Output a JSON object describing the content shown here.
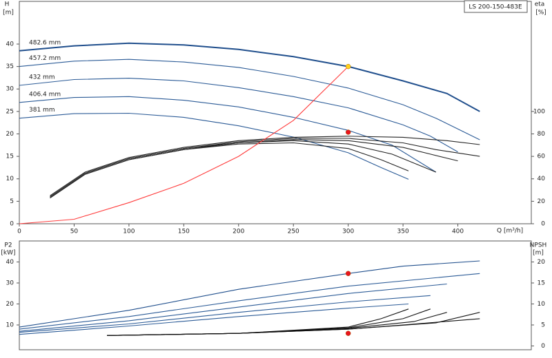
{
  "chart_data": [
    {
      "type": "line",
      "title": "LS 200-150-483E",
      "ylabel": "H",
      "yunit": "[m]",
      "y2label": "eta",
      "y2unit": "[%]",
      "xlabel": "Q [m³/h]",
      "xlim": [
        0,
        467
      ],
      "ylim": [
        0,
        49.5
      ],
      "y2lim": [
        0,
        198
      ],
      "xticks": [
        0,
        50,
        100,
        150,
        200,
        250,
        300,
        350,
        400
      ],
      "yticks": [
        0,
        5,
        10,
        15,
        20,
        25,
        30,
        35,
        40
      ],
      "y2ticks": [
        0,
        20,
        40,
        60,
        80,
        100
      ],
      "series": [
        {
          "name": "482.6 mm",
          "color": "#1f4e8c",
          "x": [
            0,
            50,
            100,
            150,
            200,
            250,
            300,
            350,
            390,
            420
          ],
          "values": [
            38.5,
            39.6,
            40.2,
            39.8,
            38.8,
            37.2,
            35,
            31.8,
            29,
            25
          ]
        },
        {
          "name": "457.2 mm",
          "color": "#2a5a96",
          "x": [
            0,
            50,
            100,
            150,
            200,
            250,
            300,
            350,
            380,
            420
          ],
          "values": [
            35,
            36.2,
            36.6,
            36,
            34.8,
            32.8,
            30.2,
            26.5,
            23.5,
            18.7
          ]
        },
        {
          "name": "432 mm",
          "color": "#2a5a96",
          "x": [
            0,
            50,
            100,
            150,
            200,
            250,
            300,
            350,
            375,
            400
          ],
          "values": [
            30.8,
            32.1,
            32.4,
            31.8,
            30.3,
            28.3,
            25.8,
            22,
            19.5,
            16
          ]
        },
        {
          "name": "406.4 mm",
          "color": "#2a5a96",
          "x": [
            0,
            50,
            100,
            150,
            200,
            250,
            300,
            340,
            380
          ],
          "values": [
            27,
            28.1,
            28.3,
            27.5,
            26,
            23.7,
            20.8,
            17.5,
            11.5
          ]
        },
        {
          "name": "381 mm",
          "color": "#2a5a96",
          "x": [
            0,
            50,
            100,
            150,
            200,
            250,
            300,
            330,
            355
          ],
          "values": [
            23.5,
            24.5,
            24.6,
            23.7,
            21.8,
            19.3,
            15.8,
            12.5,
            9.9
          ]
        },
        {
          "color": "#222222",
          "axis": "y2",
          "x": [
            28,
            60,
            100,
            150,
            200,
            250,
            300,
            350,
            390,
            420
          ],
          "values": [
            25,
            46,
            59,
            68,
            74,
            77,
            78,
            77,
            74,
            70.5
          ]
        },
        {
          "color": "#222222",
          "axis": "y2",
          "x": [
            28,
            60,
            100,
            150,
            200,
            250,
            300,
            350,
            380,
            420
          ],
          "values": [
            24,
            45,
            58,
            67,
            73,
            76,
            76,
            72,
            66,
            60
          ]
        },
        {
          "color": "#222222",
          "axis": "y2",
          "x": [
            28,
            60,
            100,
            150,
            200,
            250,
            300,
            350,
            375,
            400
          ],
          "values": [
            24,
            45,
            58,
            67,
            72,
            75,
            74,
            68,
            62,
            56
          ]
        },
        {
          "color": "#222222",
          "axis": "y2",
          "x": [
            28,
            60,
            100,
            150,
            200,
            250,
            300,
            340,
            380
          ],
          "values": [
            23,
            44,
            57,
            66,
            72,
            74,
            71,
            62,
            46
          ]
        },
        {
          "color": "#222222",
          "axis": "y2",
          "x": [
            28,
            60,
            100,
            150,
            200,
            250,
            300,
            330,
            355
          ],
          "values": [
            23,
            44,
            57,
            66,
            71,
            72,
            67,
            57,
            47
          ]
        },
        {
          "color": "#ff3b3b",
          "x": [
            0,
            50,
            100,
            150,
            200,
            250,
            300
          ],
          "values": [
            0,
            1,
            4.7,
            9,
            15,
            23,
            35
          ]
        },
        {
          "color": "#ffd21f",
          "mode": "marker",
          "x": [
            300
          ],
          "values": [
            35
          ]
        },
        {
          "color": "#e8141e",
          "mode": "marker",
          "axis": "y2",
          "x": [
            300
          ],
          "values": [
            81.5
          ]
        }
      ]
    },
    {
      "type": "line",
      "ylabel": "P2",
      "yunit": "[kW]",
      "y2label": "NPSH",
      "y2unit": "[m]",
      "xlim": [
        0,
        467
      ],
      "ylim": [
        -1.8,
        50
      ],
      "y2lim": [
        -0.9,
        25
      ],
      "yticks": [
        10,
        20,
        30,
        40
      ],
      "y2ticks": [
        0,
        5,
        10,
        15,
        20
      ],
      "series": [
        {
          "color": "#1f4e8c",
          "x": [
            0,
            100,
            200,
            300,
            350,
            420
          ],
          "values": [
            9,
            17,
            27,
            34.5,
            38,
            40.5
          ]
        },
        {
          "color": "#2a5a96",
          "x": [
            0,
            100,
            200,
            300,
            420
          ],
          "values": [
            8,
            14,
            21.5,
            28.5,
            34.5
          ]
        },
        {
          "color": "#2a5a96",
          "x": [
            0,
            100,
            200,
            300,
            390
          ],
          "values": [
            7,
            12,
            18.5,
            25,
            29.5
          ]
        },
        {
          "color": "#2a5a96",
          "x": [
            0,
            100,
            200,
            300,
            375
          ],
          "values": [
            6.5,
            10.5,
            16,
            21,
            24
          ]
        },
        {
          "color": "#2a5a96",
          "x": [
            0,
            100,
            200,
            300,
            355
          ],
          "values": [
            5.5,
            9.5,
            14,
            18,
            20
          ]
        },
        {
          "color": "#111111",
          "axis": "y2",
          "x": [
            80,
            200,
            300,
            350,
            420
          ],
          "values": [
            2.5,
            3,
            4,
            5,
            6.5
          ]
        },
        {
          "color": "#111111",
          "axis": "y2",
          "x": [
            80,
            200,
            300,
            380,
            420
          ],
          "values": [
            2.5,
            3,
            4,
            5.5,
            8
          ]
        },
        {
          "color": "#111111",
          "axis": "y2",
          "x": [
            80,
            200,
            300,
            360,
            390
          ],
          "values": [
            2.5,
            3,
            4.2,
            5.8,
            8
          ]
        },
        {
          "color": "#111111",
          "axis": "y2",
          "x": [
            80,
            200,
            300,
            350,
            375
          ],
          "values": [
            2.5,
            3,
            4.3,
            6.5,
            8.8
          ]
        },
        {
          "color": "#111111",
          "axis": "y2",
          "x": [
            80,
            200,
            300,
            330,
            355
          ],
          "values": [
            2.5,
            3,
            4.5,
            6.5,
            8.8
          ]
        },
        {
          "color": "#e8141e",
          "mode": "marker",
          "x": [
            300
          ],
          "values": [
            34.5
          ]
        },
        {
          "color": "#e8141e",
          "mode": "marker",
          "axis": "y2",
          "x": [
            300
          ],
          "values": [
            3
          ]
        }
      ]
    }
  ]
}
